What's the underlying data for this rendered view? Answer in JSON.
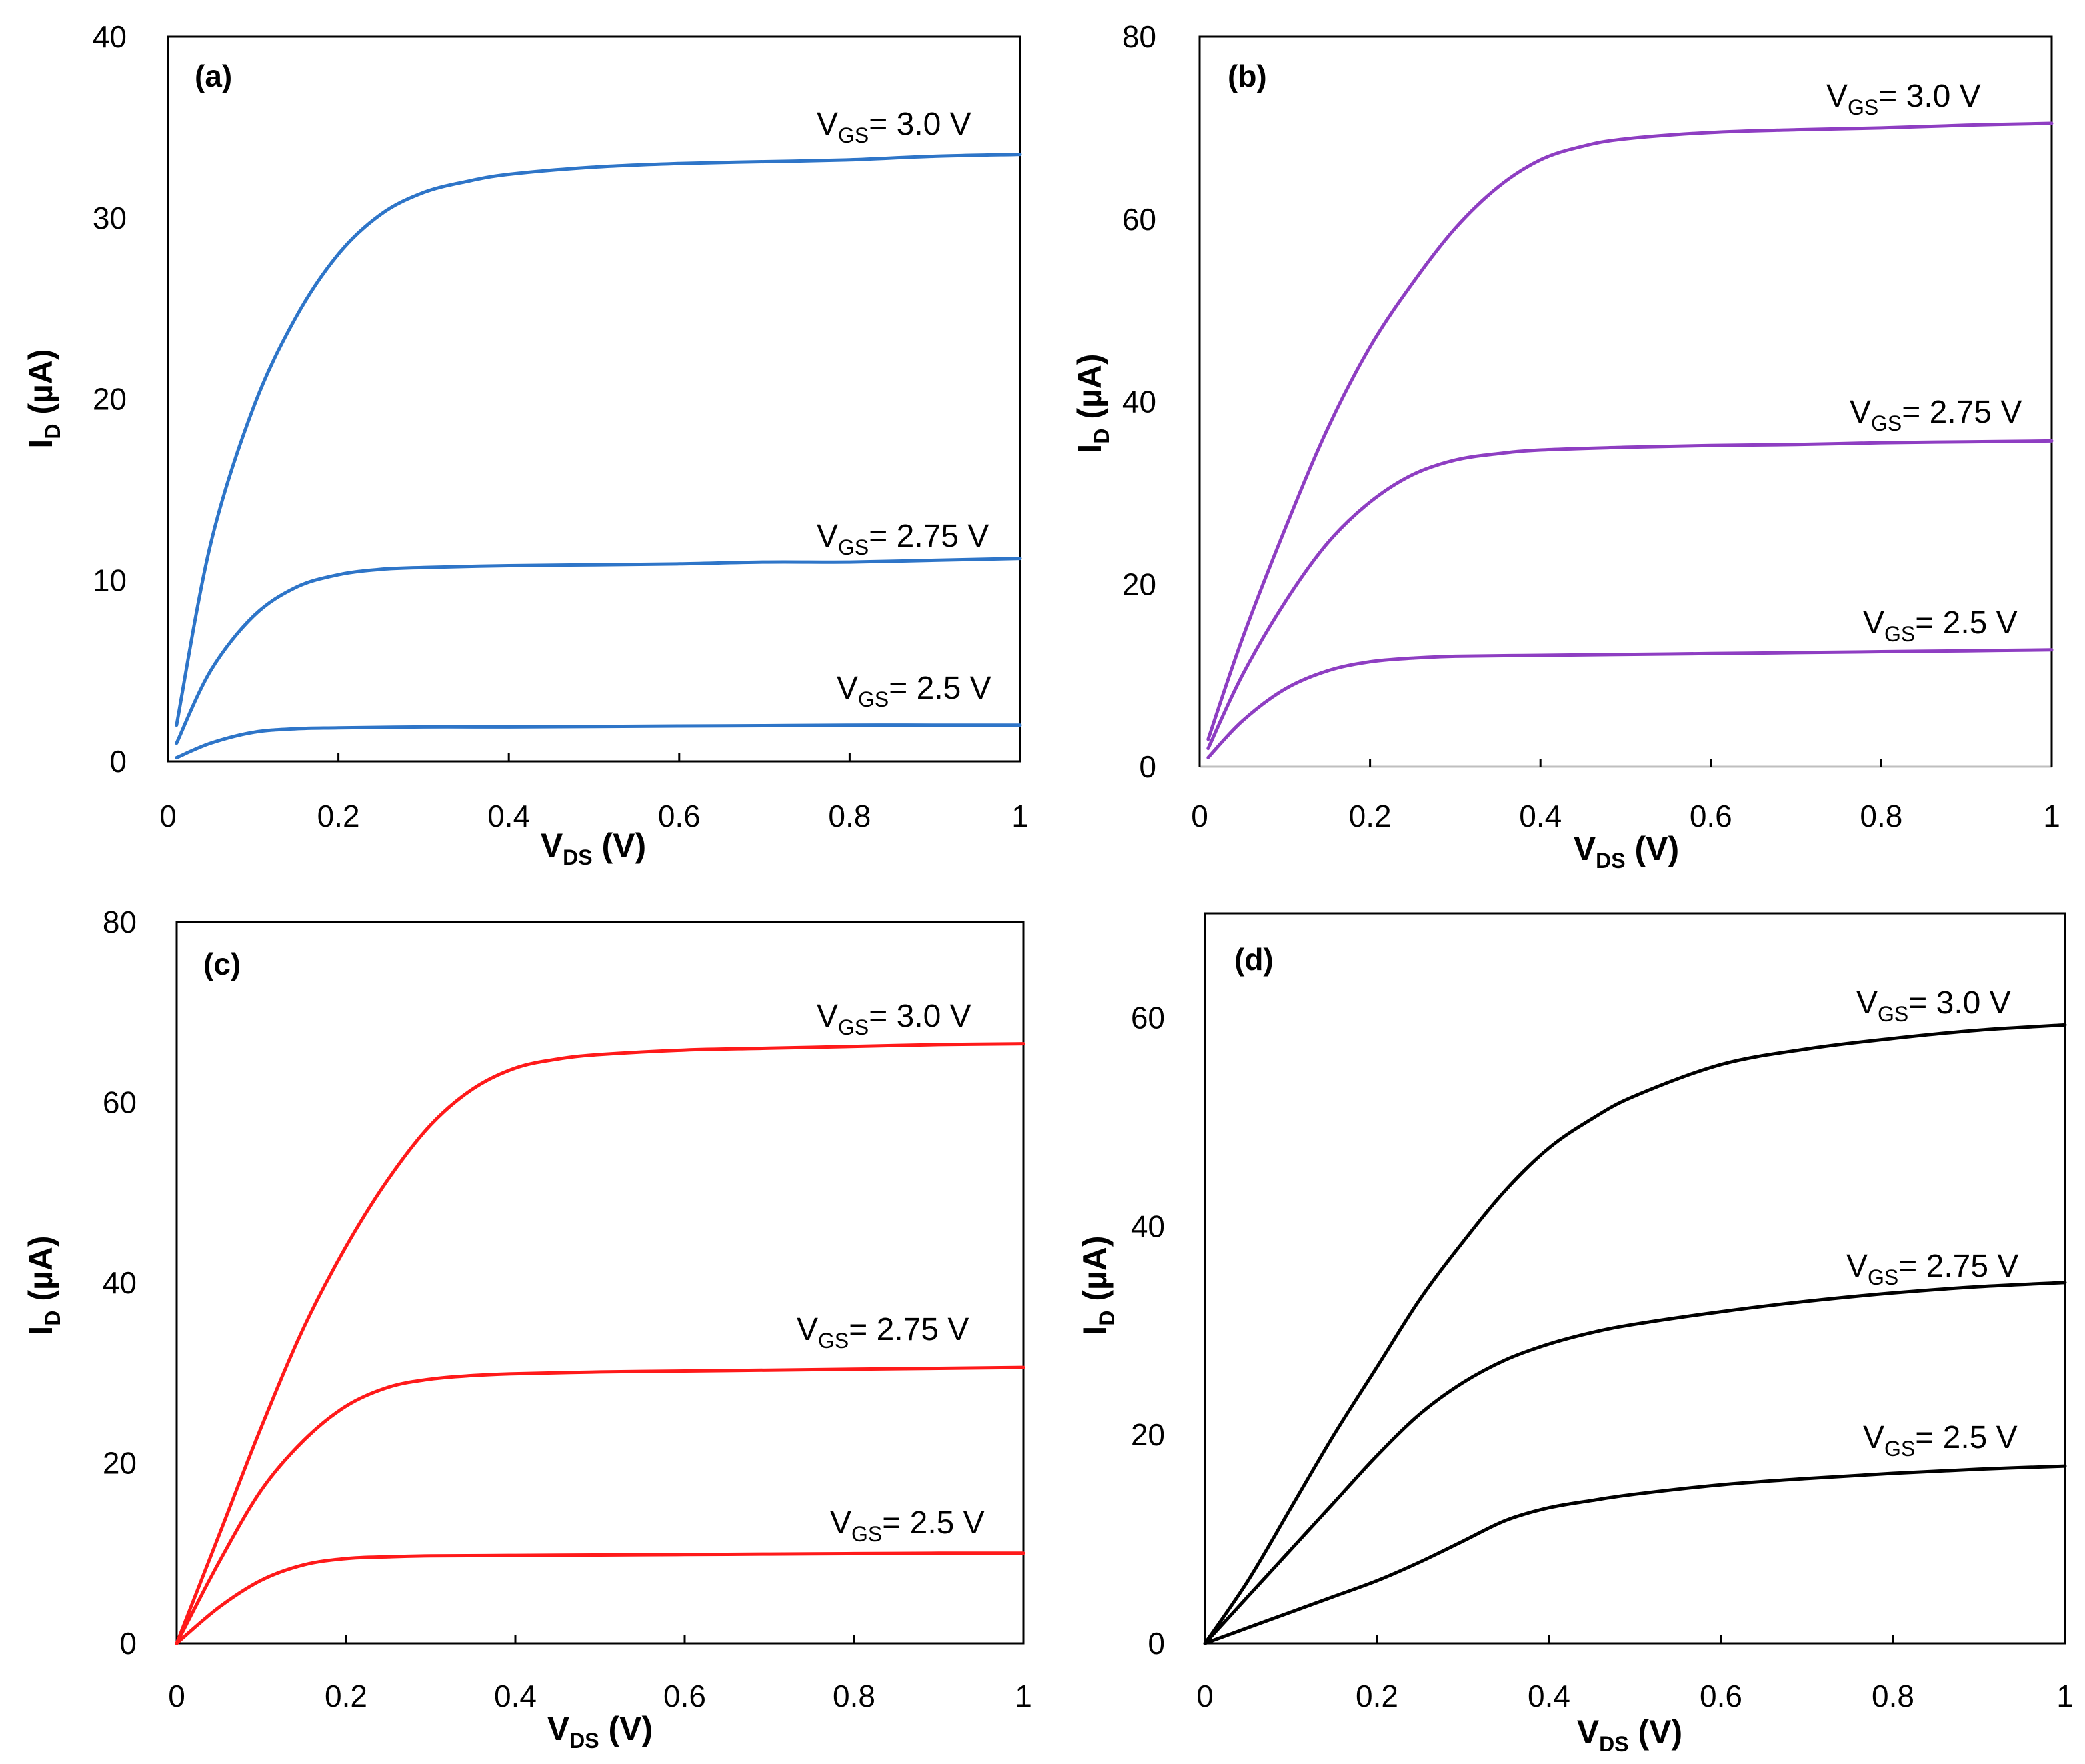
{
  "chart_data": [
    {
      "id": "a",
      "type": "line",
      "panel_label": "(a)",
      "color": "#2e75c8",
      "xlabel": {
        "main": "V",
        "sub": "DS",
        "suffix": " (V)"
      },
      "ylabel": {
        "main": "I",
        "sub": "D",
        "suffix": " (µA)"
      },
      "xlim": [
        0,
        1
      ],
      "ylim": [
        0,
        40
      ],
      "xticks": [
        0,
        0.2,
        0.4,
        0.6,
        0.8,
        1
      ],
      "xtick_labels": [
        "0",
        "0.2",
        "0.4",
        "0.6",
        "0.8",
        "1"
      ],
      "yticks": [
        0,
        10,
        20,
        30,
        40
      ],
      "ytick_labels": [
        "0",
        "10",
        "20",
        "30",
        "40"
      ],
      "series": [
        {
          "name": "VGS= 3.0 V",
          "label": {
            "main": "V",
            "sub": "GS",
            "rest": "= 3.0 V"
          },
          "x": [
            0.01,
            0.05,
            0.1,
            0.15,
            0.2,
            0.25,
            0.3,
            0.35,
            0.4,
            0.5,
            0.6,
            0.7,
            0.8,
            0.9,
            1.0
          ],
          "y": [
            2.0,
            12.0,
            19.5,
            24.5,
            28.0,
            30.2,
            31.4,
            32.0,
            32.4,
            32.8,
            33.0,
            33.1,
            33.2,
            33.4,
            33.5
          ]
        },
        {
          "name": "VGS= 2.75 V",
          "label": {
            "main": "V",
            "sub": "GS",
            "rest": "= 2.75 V"
          },
          "x": [
            0.01,
            0.05,
            0.1,
            0.15,
            0.2,
            0.25,
            0.3,
            0.4,
            0.5,
            0.6,
            0.7,
            0.8,
            0.9,
            1.0
          ],
          "y": [
            1.0,
            5.0,
            8.0,
            9.6,
            10.3,
            10.6,
            10.7,
            10.8,
            10.85,
            10.9,
            11.0,
            11.0,
            11.1,
            11.2
          ]
        },
        {
          "name": "VGS= 2.5 V",
          "label": {
            "main": "V",
            "sub": "GS",
            "rest": "= 2.5 V"
          },
          "x": [
            0.01,
            0.05,
            0.1,
            0.15,
            0.2,
            0.3,
            0.4,
            0.5,
            0.6,
            0.7,
            0.8,
            0.9,
            1.0
          ],
          "y": [
            0.2,
            1.0,
            1.6,
            1.8,
            1.85,
            1.9,
            1.9,
            1.92,
            1.95,
            1.97,
            2.0,
            2.0,
            2.0
          ]
        }
      ]
    },
    {
      "id": "b",
      "type": "line",
      "panel_label": "(b)",
      "color": "#8e3ec2",
      "xlabel": {
        "main": "V",
        "sub": "DS",
        "suffix": " (V)"
      },
      "ylabel": {
        "main": "I",
        "sub": "D",
        "suffix": " (µA)"
      },
      "xlim": [
        0,
        1
      ],
      "ylim": [
        0,
        80
      ],
      "xticks": [
        0,
        0.2,
        0.4,
        0.6,
        0.8,
        1
      ],
      "xtick_labels": [
        "0",
        "0.2",
        "0.4",
        "0.6",
        "0.8",
        "1"
      ],
      "yticks": [
        0,
        20,
        40,
        60,
        80
      ],
      "ytick_labels": [
        "0",
        "20",
        "40",
        "60",
        "80"
      ],
      "series": [
        {
          "name": "VGS= 3.0 V",
          "label": {
            "main": "V",
            "sub": "GS",
            "rest": "= 3.0 V"
          },
          "x": [
            0.01,
            0.05,
            0.1,
            0.15,
            0.2,
            0.25,
            0.3,
            0.35,
            0.4,
            0.45,
            0.5,
            0.6,
            0.7,
            0.8,
            0.9,
            1.0
          ],
          "y": [
            3.0,
            14.0,
            26.0,
            37.0,
            46.0,
            53.0,
            59.0,
            63.5,
            66.5,
            68.0,
            68.8,
            69.5,
            69.8,
            70.0,
            70.3,
            70.5
          ]
        },
        {
          "name": "VGS= 2.75 V",
          "label": {
            "main": "V",
            "sub": "GS",
            "rest": "= 2.75 V"
          },
          "x": [
            0.01,
            0.05,
            0.1,
            0.15,
            0.2,
            0.25,
            0.3,
            0.35,
            0.4,
            0.5,
            0.6,
            0.7,
            0.8,
            0.9,
            1.0
          ],
          "y": [
            2.0,
            10.0,
            18.0,
            24.5,
            29.0,
            32.0,
            33.6,
            34.3,
            34.7,
            35.0,
            35.2,
            35.3,
            35.5,
            35.6,
            35.7
          ]
        },
        {
          "name": "VGS= 2.5 V",
          "label": {
            "main": "V",
            "sub": "GS",
            "rest": "= 2.5 V"
          },
          "x": [
            0.01,
            0.05,
            0.1,
            0.15,
            0.2,
            0.25,
            0.3,
            0.4,
            0.5,
            0.6,
            0.7,
            0.8,
            0.9,
            1.0
          ],
          "y": [
            1.0,
            5.0,
            8.5,
            10.5,
            11.5,
            11.9,
            12.1,
            12.2,
            12.3,
            12.4,
            12.5,
            12.6,
            12.7,
            12.8
          ]
        }
      ]
    },
    {
      "id": "c",
      "type": "line",
      "panel_label": "(c)",
      "color": "#ff1a1a",
      "xlabel": {
        "main": "V",
        "sub": "DS",
        "suffix": " (V)"
      },
      "ylabel": {
        "main": "I",
        "sub": "D",
        "suffix": " (µA)"
      },
      "xlim": [
        0,
        1
      ],
      "ylim": [
        0,
        80
      ],
      "xticks": [
        0,
        0.2,
        0.4,
        0.6,
        0.8,
        1
      ],
      "xtick_labels": [
        "0",
        "0.2",
        "0.4",
        "0.6",
        "0.8",
        "1"
      ],
      "yticks": [
        0,
        20,
        40,
        60,
        80
      ],
      "ytick_labels": [
        "0",
        "20",
        "40",
        "60",
        "80"
      ],
      "series": [
        {
          "name": "VGS= 3.0 V",
          "label": {
            "main": "V",
            "sub": "GS",
            "rest": "= 3.0 V"
          },
          "x": [
            0.0,
            0.05,
            0.1,
            0.15,
            0.2,
            0.25,
            0.3,
            0.35,
            0.4,
            0.45,
            0.5,
            0.6,
            0.7,
            0.8,
            0.9,
            1.0
          ],
          "y": [
            0.0,
            12.0,
            24.0,
            35.0,
            44.0,
            51.5,
            57.5,
            61.5,
            63.8,
            64.8,
            65.3,
            65.8,
            66.0,
            66.2,
            66.4,
            66.5
          ]
        },
        {
          "name": "VGS= 2.75 V",
          "label": {
            "main": "V",
            "sub": "GS",
            "rest": "= 2.75 V"
          },
          "x": [
            0.0,
            0.05,
            0.1,
            0.15,
            0.2,
            0.25,
            0.3,
            0.35,
            0.4,
            0.5,
            0.6,
            0.7,
            0.8,
            0.9,
            1.0
          ],
          "y": [
            0.0,
            9.0,
            17.0,
            22.5,
            26.3,
            28.4,
            29.3,
            29.7,
            29.9,
            30.1,
            30.2,
            30.3,
            30.4,
            30.5,
            30.6
          ]
        },
        {
          "name": "VGS= 2.5 V",
          "label": {
            "main": "V",
            "sub": "GS",
            "rest": "= 2.5 V"
          },
          "x": [
            0.0,
            0.05,
            0.1,
            0.15,
            0.2,
            0.25,
            0.3,
            0.4,
            0.5,
            0.6,
            0.7,
            0.8,
            0.9,
            1.0
          ],
          "y": [
            0.0,
            4.0,
            7.0,
            8.7,
            9.4,
            9.6,
            9.7,
            9.75,
            9.8,
            9.85,
            9.9,
            9.95,
            10.0,
            10.0
          ]
        }
      ]
    },
    {
      "id": "d",
      "type": "line",
      "panel_label": "(d)",
      "color": "#000000",
      "xlabel": {
        "main": "V",
        "sub": "DS",
        "suffix": " (V)"
      },
      "ylabel": {
        "main": "I",
        "sub": "D",
        "suffix": " (µA)"
      },
      "xlim": [
        0,
        1
      ],
      "ylim": [
        0,
        70
      ],
      "xticks": [
        0,
        0.2,
        0.4,
        0.6,
        0.8,
        1
      ],
      "xtick_labels": [
        "0",
        "0.2",
        "0.4",
        "0.6",
        "0.8",
        "1"
      ],
      "yticks": [
        0,
        20,
        40,
        60
      ],
      "ytick_labels": [
        "0",
        "20",
        "40",
        "60"
      ],
      "series": [
        {
          "name": "VGS= 3.0 V",
          "label": {
            "main": "V",
            "sub": "GS",
            "rest": "= 3.0 V"
          },
          "x": [
            0.0,
            0.05,
            0.1,
            0.15,
            0.2,
            0.25,
            0.3,
            0.35,
            0.4,
            0.45,
            0.5,
            0.6,
            0.7,
            0.8,
            0.9,
            1.0
          ],
          "y": [
            0.0,
            6.0,
            13.0,
            20.0,
            26.5,
            33.0,
            38.5,
            43.5,
            47.5,
            50.3,
            52.5,
            55.5,
            57.0,
            58.0,
            58.8,
            59.3
          ]
        },
        {
          "name": "VGS= 2.75 V",
          "label": {
            "main": "V",
            "sub": "GS",
            "rest": "= 2.75 V"
          },
          "x": [
            0.0,
            0.05,
            0.1,
            0.15,
            0.2,
            0.25,
            0.3,
            0.35,
            0.4,
            0.45,
            0.5,
            0.6,
            0.7,
            0.8,
            0.9,
            1.0
          ],
          "y": [
            0.0,
            4.5,
            9.0,
            13.5,
            18.0,
            22.0,
            25.0,
            27.2,
            28.7,
            29.8,
            30.6,
            31.8,
            32.8,
            33.6,
            34.2,
            34.6
          ]
        },
        {
          "name": "VGS= 2.5 V",
          "label": {
            "main": "V",
            "sub": "GS",
            "rest": "= 2.5 V"
          },
          "x": [
            0.0,
            0.05,
            0.1,
            0.15,
            0.2,
            0.25,
            0.3,
            0.35,
            0.4,
            0.45,
            0.5,
            0.6,
            0.7,
            0.8,
            0.9,
            1.0
          ],
          "y": [
            0.0,
            1.5,
            3.0,
            4.5,
            6.0,
            7.8,
            9.8,
            11.8,
            13.0,
            13.7,
            14.3,
            15.2,
            15.8,
            16.3,
            16.7,
            17.0
          ]
        }
      ]
    }
  ]
}
